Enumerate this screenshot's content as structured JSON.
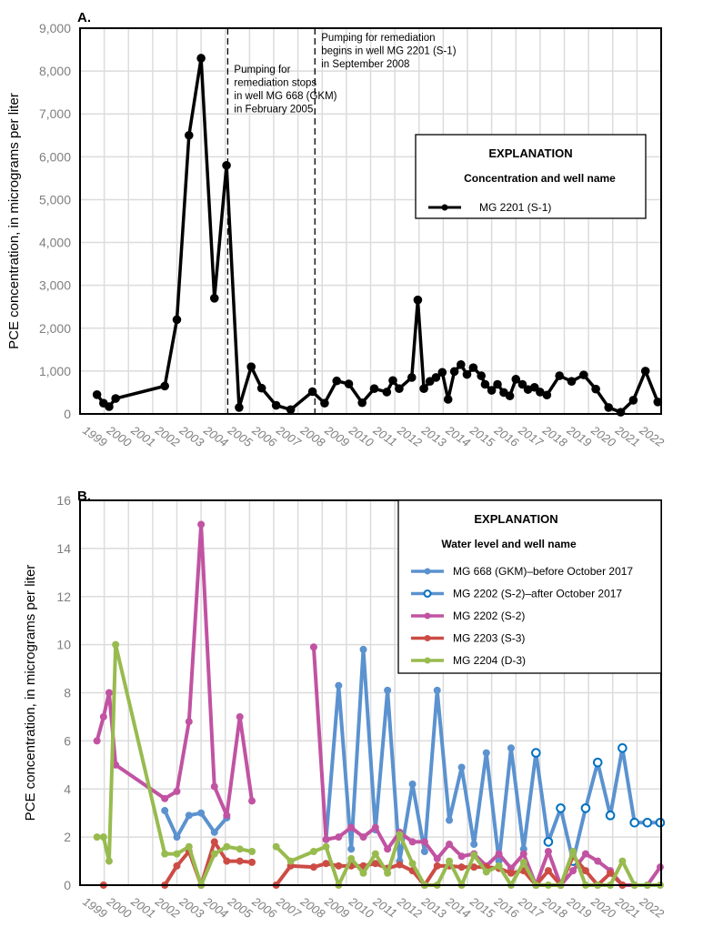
{
  "chart_data": [
    {
      "type": "line",
      "panel_label": "A.",
      "ylabel": "PCE concentration, in micrograms per liter",
      "ylim": [
        0,
        9000
      ],
      "yticks": [
        "0",
        "1,000",
        "2,000",
        "3,000",
        "4,000",
        "5,000",
        "6,000",
        "7,000",
        "8,000",
        "9,000"
      ],
      "xlim": [
        1999,
        2023
      ],
      "xticks": [
        "1999",
        "2000",
        "2001",
        "2002",
        "2003",
        "2004",
        "2005",
        "2006",
        "2007",
        "2008",
        "2009",
        "2010",
        "2011",
        "2012",
        "2013",
        "2014",
        "2015",
        "2016",
        "2017",
        "2018",
        "2019",
        "2020",
        "2021",
        "2022"
      ],
      "grid": true,
      "legend": {
        "placement": "upper-right",
        "title": "EXPLANATION",
        "subtitle": "Concentration and well name",
        "entries": [
          "MG 2201 (S-1)"
        ]
      },
      "annotations": [
        {
          "x": 2005.1,
          "lines": [
            "Pumping for",
            "remediation stops",
            "in well MG 668 (GKM)",
            "in February 2005"
          ]
        },
        {
          "x": 2008.7,
          "lines": [
            "Pumping for remediation",
            "begins in well MG 2201 (S-1)",
            "in September 2008"
          ]
        }
      ],
      "series": [
        {
          "name": "MG 2201 (S-1)",
          "color": "#000000",
          "marker": "filled",
          "points": [
            [
              1999.7,
              450
            ],
            [
              1999.97,
              250
            ],
            [
              2000.2,
              170
            ],
            [
              2000.47,
              360
            ],
            [
              2002.5,
              650
            ],
            [
              2003.0,
              2200
            ],
            [
              2003.5,
              6500
            ],
            [
              2004.0,
              8300
            ],
            [
              2004.55,
              2700
            ],
            [
              2005.05,
              5800
            ],
            [
              2005.57,
              150
            ],
            [
              2006.07,
              1100
            ],
            [
              2006.5,
              600
            ],
            [
              2007.1,
              200
            ],
            [
              2007.7,
              100
            ],
            [
              2008.6,
              520
            ],
            [
              2009.1,
              250
            ],
            [
              2009.6,
              770
            ],
            [
              2010.1,
              700
            ],
            [
              2010.65,
              260
            ],
            [
              2011.15,
              590
            ],
            [
              2011.67,
              510
            ],
            [
              2011.92,
              780
            ],
            [
              2012.18,
              590
            ],
            [
              2012.7,
              850
            ],
            [
              2012.95,
              2660
            ],
            [
              2013.2,
              590
            ],
            [
              2013.45,
              760
            ],
            [
              2013.7,
              850
            ],
            [
              2013.96,
              970
            ],
            [
              2014.2,
              340
            ],
            [
              2014.46,
              990
            ],
            [
              2014.73,
              1150
            ],
            [
              2014.98,
              920
            ],
            [
              2015.24,
              1080
            ],
            [
              2015.57,
              890
            ],
            [
              2015.73,
              690
            ],
            [
              2016.0,
              550
            ],
            [
              2016.24,
              690
            ],
            [
              2016.5,
              500
            ],
            [
              2016.75,
              420
            ],
            [
              2017.0,
              810
            ],
            [
              2017.27,
              690
            ],
            [
              2017.5,
              570
            ],
            [
              2017.77,
              620
            ],
            [
              2018.0,
              510
            ],
            [
              2018.28,
              440
            ],
            [
              2018.8,
              890
            ],
            [
              2019.3,
              760
            ],
            [
              2019.8,
              910
            ],
            [
              2020.3,
              580
            ],
            [
              2020.83,
              150
            ],
            [
              2021.33,
              40
            ],
            [
              2021.85,
              320
            ],
            [
              2022.35,
              1000
            ],
            [
              2022.86,
              280
            ]
          ]
        }
      ]
    },
    {
      "type": "line",
      "panel_label": "B.",
      "ylabel": "PCE concentration, in micrograms per liter",
      "ylim": [
        0,
        16
      ],
      "yticks": [
        "0",
        "2",
        "4",
        "6",
        "8",
        "10",
        "12",
        "14",
        "16"
      ],
      "xlim": [
        1999,
        2023
      ],
      "xticks": [
        "1999",
        "2000",
        "2001",
        "2002",
        "2003",
        "2004",
        "2005",
        "2006",
        "2007",
        "2008",
        "2009",
        "2010",
        "2011",
        "2012",
        "2013",
        "2014",
        "2015",
        "2016",
        "2017",
        "2018",
        "2019",
        "2020",
        "2021",
        "2022"
      ],
      "grid": true,
      "legend": {
        "placement": "upper-right",
        "title": "EXPLANATION",
        "subtitle": "Water level and well name",
        "entries": [
          "MG 668 (GKM)–before October 2017",
          "MG 2202 (S-2)–after October 2017",
          "MG 2202 (S-2)",
          "MG 2203 (S-3)",
          "MG 2204 (D-3)"
        ]
      },
      "series": [
        {
          "name": "MG 668 (GKM)–before October 2017",
          "color": "#5b92cf",
          "marker": "filled",
          "segments": [
            [
              [
                2002.5,
                3.1
              ],
              [
                2003.0,
                2.0
              ],
              [
                2003.5,
                2.9
              ],
              [
                2004.0,
                3.0
              ],
              [
                2004.55,
                2.2
              ],
              [
                2005.06,
                2.8
              ]
            ],
            [
              [
                2009.16,
                1.9
              ],
              [
                2009.68,
                8.3
              ],
              [
                2010.2,
                1.5
              ],
              [
                2010.7,
                9.8
              ],
              [
                2011.2,
                2.3
              ],
              [
                2011.7,
                8.1
              ],
              [
                2012.2,
                1.0
              ],
              [
                2012.73,
                4.2
              ],
              [
                2013.23,
                1.4
              ],
              [
                2013.75,
                8.1
              ],
              [
                2014.25,
                2.7
              ],
              [
                2014.76,
                4.9
              ],
              [
                2015.27,
                1.7
              ],
              [
                2015.78,
                5.5
              ],
              [
                2016.3,
                1.0
              ],
              [
                2016.8,
                5.7
              ],
              [
                2017.32,
                1.5
              ],
              [
                2017.83,
                5.5
              ]
            ]
          ]
        },
        {
          "name": "MG 2202 (S-2)–after October 2017",
          "color": "#5b92cf",
          "marker_color": "#0070c0",
          "marker": "open",
          "segments": [
            [
              [
                2017.83,
                5.5
              ],
              [
                2018.34,
                1.8
              ],
              [
                2018.85,
                3.2
              ],
              [
                2019.36,
                1.0
              ],
              [
                2019.88,
                3.2
              ],
              [
                2020.38,
                5.1
              ],
              [
                2020.9,
                2.9
              ],
              [
                2021.4,
                5.7
              ],
              [
                2021.9,
                2.6
              ],
              [
                2022.43,
                2.6
              ],
              [
                2022.96,
                2.6
              ]
            ]
          ]
        },
        {
          "name": "MG 2202 (S-2)",
          "color": "#c153a2",
          "marker": "filled",
          "segments": [
            [
              [
                1999.7,
                6.0
              ],
              [
                1999.97,
                7.0
              ],
              [
                2000.2,
                8.0
              ],
              [
                2000.47,
                5.0
              ],
              [
                2002.5,
                3.6
              ],
              [
                2003.0,
                3.9
              ],
              [
                2003.5,
                6.8
              ],
              [
                2004.0,
                15
              ],
              [
                2004.55,
                4.1
              ],
              [
                2005.06,
                2.9
              ],
              [
                2005.6,
                7.0
              ],
              [
                2006.1,
                3.5
              ]
            ],
            [
              [
                2008.65,
                9.9
              ],
              [
                2009.16,
                1.9
              ],
              [
                2009.68,
                2.0
              ],
              [
                2010.2,
                2.4
              ],
              [
                2010.7,
                2.0
              ],
              [
                2011.2,
                2.4
              ],
              [
                2011.7,
                1.5
              ],
              [
                2012.2,
                2.2
              ],
              [
                2012.73,
                1.8
              ],
              [
                2013.23,
                1.8
              ],
              [
                2013.75,
                1.1
              ],
              [
                2014.25,
                1.7
              ],
              [
                2014.76,
                1.2
              ],
              [
                2015.27,
                1.3
              ],
              [
                2015.78,
                0.8
              ],
              [
                2016.3,
                1.3
              ],
              [
                2016.8,
                0.7
              ],
              [
                2017.32,
                1.3
              ],
              [
                2017.83,
                0
              ],
              [
                2018.34,
                1.4
              ],
              [
                2018.85,
                0
              ],
              [
                2019.36,
                0.6
              ],
              [
                2019.88,
                1.3
              ],
              [
                2020.38,
                1.0
              ],
              [
                2020.9,
                0.6
              ],
              [
                2021.4,
                0
              ],
              [
                2021.9,
                0
              ],
              [
                2022.43,
                0
              ],
              [
                2022.96,
                0.75
              ]
            ]
          ]
        },
        {
          "name": "MG 2203 (S-3)",
          "color": "#cc4c45",
          "marker": "filled",
          "segments": [
            [
              [
                1999.97,
                0
              ]
            ],
            [
              [
                2002.5,
                0
              ],
              [
                2003.0,
                0.8
              ],
              [
                2003.5,
                1.4
              ],
              [
                2004.0,
                0
              ],
              [
                2004.55,
                1.8
              ],
              [
                2005.06,
                1.0
              ],
              [
                2005.6,
                1.0
              ],
              [
                2006.1,
                0.95
              ]
            ],
            [
              [
                2007.1,
                0
              ],
              [
                2007.7,
                0.8
              ],
              [
                2008.65,
                0.75
              ],
              [
                2009.16,
                0.9
              ],
              [
                2009.68,
                0.8
              ],
              [
                2010.2,
                0.8
              ],
              [
                2010.7,
                0.8
              ],
              [
                2011.2,
                0.9
              ],
              [
                2011.7,
                0.7
              ],
              [
                2012.2,
                0.85
              ],
              [
                2012.73,
                0.6
              ],
              [
                2013.23,
                0
              ],
              [
                2013.75,
                0.8
              ],
              [
                2014.25,
                0.8
              ],
              [
                2014.76,
                0.75
              ],
              [
                2015.27,
                0.75
              ],
              [
                2015.78,
                0.75
              ],
              [
                2016.3,
                0.7
              ],
              [
                2016.8,
                0.5
              ],
              [
                2017.32,
                0.6
              ],
              [
                2017.83,
                0
              ],
              [
                2018.34,
                0.6
              ],
              [
                2018.85,
                0
              ],
              [
                2019.36,
                1.2
              ],
              [
                2019.88,
                0.6
              ],
              [
                2020.38,
                0
              ],
              [
                2020.9,
                0.5
              ],
              [
                2021.4,
                0
              ]
            ]
          ]
        },
        {
          "name": "MG 2204 (D-3)",
          "color": "#98bb4f",
          "marker": "filled",
          "segments": [
            [
              [
                1999.7,
                2.0
              ],
              [
                1999.97,
                2.0
              ],
              [
                2000.2,
                1.0
              ],
              [
                2000.47,
                10
              ],
              [
                2002.5,
                1.3
              ],
              [
                2003.0,
                1.3
              ],
              [
                2003.5,
                1.6
              ],
              [
                2004.0,
                0
              ],
              [
                2004.55,
                1.3
              ],
              [
                2005.06,
                1.6
              ],
              [
                2005.6,
                1.5
              ],
              [
                2006.1,
                1.4
              ]
            ],
            [
              [
                2007.1,
                1.6
              ],
              [
                2007.7,
                1.0
              ],
              [
                2008.65,
                1.4
              ],
              [
                2009.16,
                1.6
              ],
              [
                2009.68,
                0
              ],
              [
                2010.2,
                1.1
              ],
              [
                2010.7,
                0.5
              ],
              [
                2011.2,
                1.3
              ],
              [
                2011.7,
                0.5
              ],
              [
                2012.2,
                2.1
              ],
              [
                2012.73,
                0.9
              ],
              [
                2013.23,
                0
              ],
              [
                2013.75,
                0
              ],
              [
                2014.25,
                1.0
              ],
              [
                2014.76,
                0
              ],
              [
                2015.27,
                1.25
              ],
              [
                2015.78,
                0.55
              ],
              [
                2016.3,
                0.8
              ],
              [
                2016.8,
                0
              ],
              [
                2017.32,
                0.95
              ],
              [
                2017.83,
                0
              ],
              [
                2018.34,
                0
              ],
              [
                2018.85,
                0
              ],
              [
                2019.36,
                1.4
              ],
              [
                2019.88,
                0
              ],
              [
                2020.38,
                0
              ],
              [
                2020.9,
                0
              ],
              [
                2021.4,
                1.0
              ],
              [
                2021.9,
                0
              ],
              [
                2022.43,
                0
              ],
              [
                2022.96,
                0
              ]
            ]
          ]
        }
      ]
    }
  ]
}
